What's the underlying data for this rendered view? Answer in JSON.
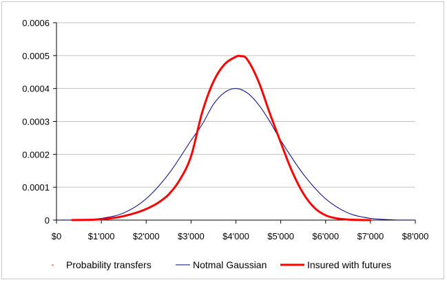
{
  "chart_data": {
    "type": "line",
    "title": "",
    "xlabel": "",
    "ylabel": "",
    "xlim": [
      0,
      8000
    ],
    "ylim": [
      0,
      0.0006
    ],
    "grid": "horizontal",
    "legend_position": "bottom",
    "x_tick_labels": [
      "$0",
      "$1'000",
      "$2'000",
      "$3'000",
      "$4'000",
      "$5'000",
      "$6'000",
      "$7'000",
      "$8'000"
    ],
    "y_tick_labels": [
      "0",
      "0.0001",
      "0.0002",
      "0.0003",
      "0.0004",
      "0.0005",
      "0.0006"
    ],
    "series": [
      {
        "name": "Probability transfers",
        "color": "#f0b0b0",
        "style": "markers",
        "x": [],
        "y": []
      },
      {
        "name": "Notmal Gaussian",
        "color": "#000080",
        "style": "line",
        "x": [
          0,
          500,
          1000,
          1500,
          2000,
          2500,
          3000,
          3250,
          3500,
          3750,
          4000,
          4250,
          4500,
          4750,
          5000,
          5500,
          6000,
          6500,
          7000,
          7500,
          8000
        ],
        "y": [
          1e-07,
          9e-07,
          5.4e-06,
          2.18e-05,
          6.48e-05,
          0.0001402,
          0.000242,
          0.0002913,
          0.0003521,
          0.0003882,
          0.0004,
          0.0003869,
          0.000352,
          0.0003012,
          0.000242,
          0.0001402,
          6.48e-05,
          2.18e-05,
          5.4e-06,
          9e-07,
          1e-07
        ]
      },
      {
        "name": "Insured with futures",
        "color": "#ff0000",
        "style": "line",
        "x": [
          350,
          750,
          1000,
          1250,
          1500,
          1750,
          2000,
          2250,
          2500,
          2750,
          3000,
          3250,
          3500,
          3750,
          4000,
          4100,
          4250,
          4500,
          4750,
          5000,
          5250,
          5500,
          5750,
          6000,
          6250,
          6500,
          6750,
          7000
        ],
        "y": [
          2e-07,
          8e-07,
          2.5e-06,
          6.2e-06,
          1.22e-05,
          2.12e-05,
          3.38e-05,
          5.13e-05,
          7.78e-05,
          0.0001225,
          0.000194,
          0.000328,
          0.000421,
          0.000474,
          0.0004965,
          0.0004985,
          0.000489,
          0.000423,
          0.000327,
          0.000236,
          0.000149,
          8.15e-05,
          3.74e-05,
          1.45e-05,
          5.2e-06,
          1.6e-06,
          5e-07,
          1e-07
        ]
      }
    ]
  }
}
